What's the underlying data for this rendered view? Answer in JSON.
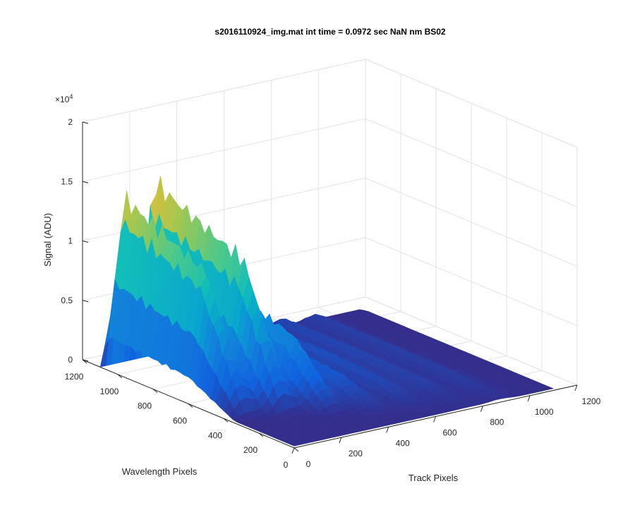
{
  "chart_data": {
    "type": "surface",
    "title": "s2016110924_img.mat int time = 0.0972 sec  NaN nm BS02",
    "xlabel": "Track Pixels",
    "ylabel": "Wavelength Pixels",
    "zlabel": "Signal (ADU)",
    "z_exponent_label": "×10",
    "z_exponent": "4",
    "xlim": [
      0,
      1200
    ],
    "ylim": [
      0,
      1200
    ],
    "zlim": [
      0,
      20000
    ],
    "x_ticks": [
      "0",
      "200",
      "400",
      "600",
      "800",
      "1000",
      "1200"
    ],
    "y_ticks": [
      "0",
      "200",
      "400",
      "600",
      "800",
      "1000",
      "1200"
    ],
    "z_ticks": [
      "0",
      "0.5",
      "1",
      "1.5",
      "2"
    ],
    "grid": true,
    "colormap": "parula",
    "data_extent": {
      "track": [
        0,
        1100
      ],
      "wavelength": [
        0,
        1100
      ]
    },
    "ridges": [
      {
        "track": 70,
        "peak": 15200,
        "plateau_wavelength": [
          600,
          1100
        ]
      },
      {
        "track": 200,
        "peak": 16000,
        "plateau_wavelength": [
          550,
          1100
        ]
      },
      {
        "track": 330,
        "peak": 7500,
        "plateau_wavelength": [
          450,
          900
        ]
      },
      {
        "track": 460,
        "peak": 2600,
        "plateau_wavelength": [
          350,
          750
        ]
      },
      {
        "track": 600,
        "peak": 1600,
        "plateau_wavelength": [
          300,
          650
        ]
      },
      {
        "track": 730,
        "peak": 1100,
        "plateau_wavelength": [
          250,
          600
        ]
      },
      {
        "track": 870,
        "peak": 800,
        "plateau_wavelength": [
          200,
          550
        ]
      }
    ]
  },
  "colors": {
    "low": "#352a87",
    "mid": "#12beb9",
    "high": "#f9fb0e",
    "axis": "#262626",
    "grid": "#e3e3e3"
  }
}
